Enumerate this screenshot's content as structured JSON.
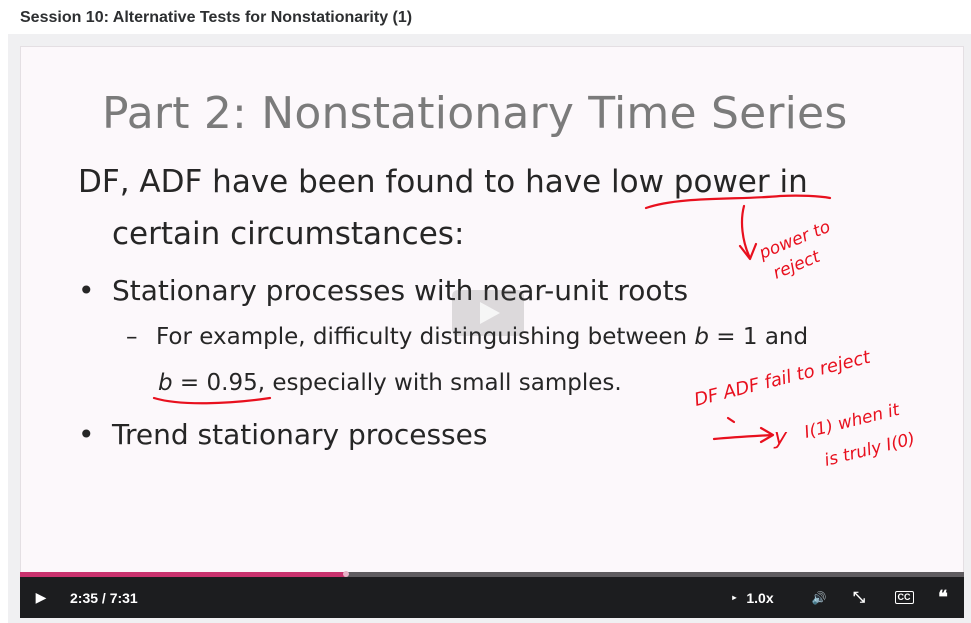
{
  "page": {
    "title": "Session 10: Alternative Tests for Nonstationarity (1)"
  },
  "slide": {
    "title": "Part 2: Nonstationary Time Series",
    "line1_pre": "DF, ADF have been found to have ",
    "line1_ul": "low power",
    "line1_post": " in",
    "line2": "certain circumstances:",
    "bullet_symbol": "•",
    "bullet1": "Stationary processes with near-unit roots",
    "sub_dash": "–",
    "sub1_pre": "For example, difficulty distinguishing between ",
    "sub1_var": "b",
    "sub1_post": " = 1 and",
    "sub2_var": "b",
    "sub2_mid": " = 0.95,",
    "sub2_post": " especially with small samples.",
    "bullet2": "Trend stationary processes"
  },
  "annotations": {
    "note1_line1": "power to",
    "note1_line2": "reject",
    "note2_line1": "DF ADF fail to reject",
    "note2_line2a": "y",
    "note2_line2b": "I(1) when it",
    "note2_line3": "is truly I(0)"
  },
  "player": {
    "play_icon": "▶",
    "time_display": "2:35 / 7:31",
    "progress": 0.345,
    "speed_label": "1.0x",
    "speed_icon": "▸",
    "volume_icon": "🔊",
    "fullscreen_icon": "⤡",
    "cc_label": "CC",
    "transcript_icon": "❝"
  },
  "colors": {
    "accent": "#c9326e",
    "annotation_ink": "#e8101e",
    "controls_bg": "#1c1d1f"
  }
}
